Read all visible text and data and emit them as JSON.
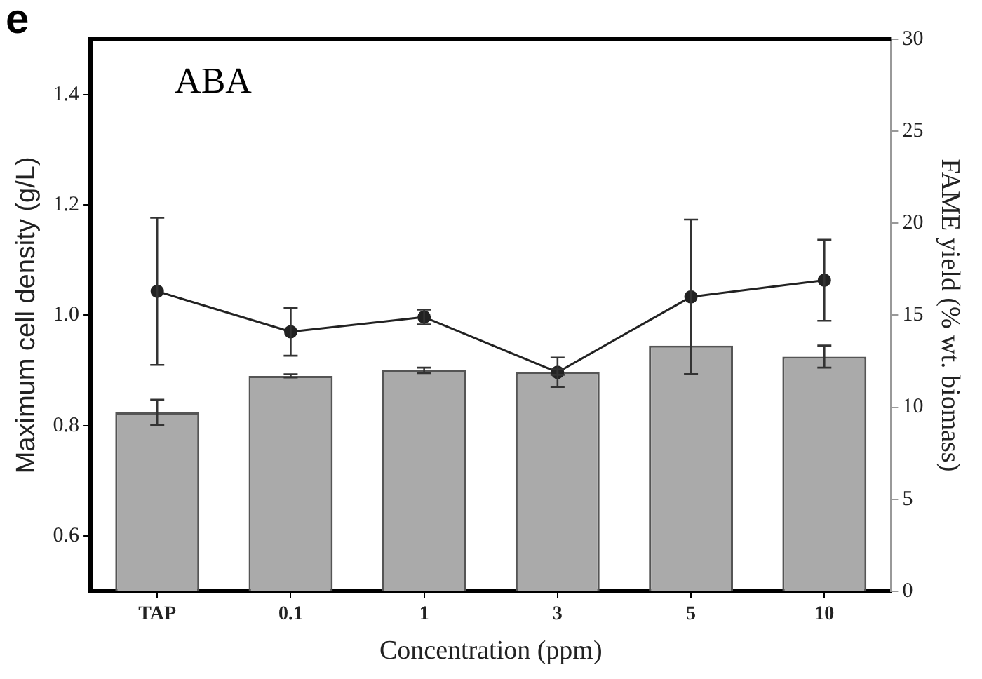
{
  "chart_data": {
    "type": "bar",
    "xlabel": "Concentration (ppm)",
    "ylabel": "Maximum cell density (g/L)",
    "y2label": "FAME yield (% wt. biomass)",
    "annotations": [
      "e",
      "ABA"
    ],
    "categories": [
      "TAP",
      "0.1",
      "1",
      "3",
      "5",
      "10"
    ],
    "series": [
      {
        "color": "#aaaaaa",
        "values": [
          0.824,
          0.89,
          0.9,
          0.897,
          0.945,
          0.925
        ],
        "errors": [
          0.023,
          0.003,
          0.005,
          0.005,
          null,
          0.02
        ]
      },
      {
        "type": "line",
        "axis": "y2",
        "color": "#222222",
        "values": [
          16.3,
          14.1,
          14.9,
          11.9,
          16.0,
          16.9
        ],
        "errors": [
          4.0,
          1.3,
          0.4,
          0.8,
          4.2,
          2.2
        ]
      }
    ],
    "ylim": [
      0.5,
      1.5
    ],
    "yticks": [
      {
        "value": 0.6,
        "label": "0.6"
      },
      {
        "value": 0.8,
        "label": "0.8"
      },
      {
        "value": 1.0,
        "label": "1.0"
      },
      {
        "value": 1.2,
        "label": "1.2"
      },
      {
        "value": 1.4,
        "label": "1.4"
      }
    ],
    "y2lim": [
      0,
      30
    ],
    "y2ticks": [
      0,
      5,
      10,
      15,
      20,
      25,
      30
    ],
    "grid": false,
    "legend": false,
    "marker": "circle",
    "line_style": "solid"
  }
}
